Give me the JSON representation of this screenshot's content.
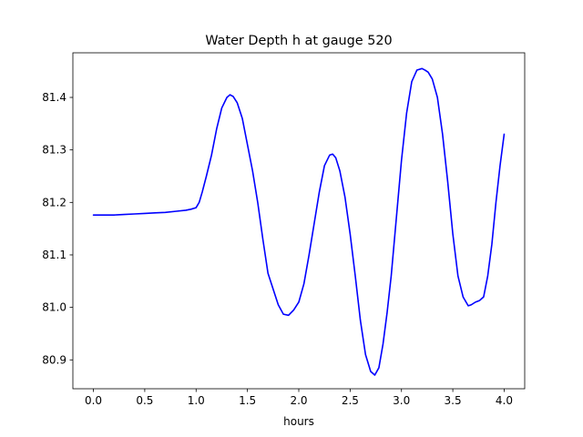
{
  "chart_data": {
    "type": "line",
    "title": "Water Depth h at gauge 520",
    "xlabel": "hours",
    "ylabel": "",
    "xlim": [
      -0.2,
      4.2
    ],
    "ylim": [
      80.845,
      81.485
    ],
    "grid": false,
    "xticks": [
      0.0,
      0.5,
      1.0,
      1.5,
      2.0,
      2.5,
      3.0,
      3.5,
      4.0
    ],
    "xtick_labels": [
      "0.0",
      "0.5",
      "1.0",
      "1.5",
      "2.0",
      "2.5",
      "3.0",
      "3.5",
      "4.0"
    ],
    "yticks": [
      80.9,
      81.0,
      81.1,
      81.2,
      81.3,
      81.4
    ],
    "ytick_labels": [
      "80.9",
      "81.0",
      "81.1",
      "81.2",
      "81.3",
      "81.4"
    ],
    "series": [
      {
        "color": "#0000ff",
        "x": [
          0.0,
          0.1,
          0.2,
          0.3,
          0.4,
          0.5,
          0.6,
          0.7,
          0.8,
          0.9,
          0.95,
          1.0,
          1.03,
          1.06,
          1.1,
          1.15,
          1.2,
          1.25,
          1.3,
          1.33,
          1.36,
          1.4,
          1.45,
          1.5,
          1.55,
          1.6,
          1.65,
          1.7,
          1.75,
          1.8,
          1.85,
          1.9,
          1.95,
          2.0,
          2.05,
          2.1,
          2.15,
          2.2,
          2.25,
          2.3,
          2.33,
          2.36,
          2.4,
          2.45,
          2.5,
          2.55,
          2.6,
          2.65,
          2.7,
          2.74,
          2.78,
          2.82,
          2.86,
          2.9,
          2.95,
          3.0,
          3.05,
          3.1,
          3.15,
          3.2,
          3.23,
          3.26,
          3.3,
          3.35,
          3.4,
          3.45,
          3.5,
          3.55,
          3.6,
          3.65,
          3.68,
          3.72,
          3.76,
          3.8,
          3.84,
          3.88,
          3.92,
          3.96,
          4.0
        ],
        "y": [
          81.176,
          81.176,
          81.176,
          81.177,
          81.178,
          81.179,
          81.18,
          81.181,
          81.183,
          81.185,
          81.187,
          81.19,
          81.2,
          81.22,
          81.25,
          81.29,
          81.34,
          81.38,
          81.4,
          81.405,
          81.402,
          81.39,
          81.36,
          81.31,
          81.26,
          81.2,
          81.13,
          81.065,
          81.035,
          81.005,
          80.987,
          80.985,
          80.995,
          81.01,
          81.045,
          81.1,
          81.16,
          81.22,
          81.27,
          81.29,
          81.292,
          81.285,
          81.26,
          81.21,
          81.14,
          81.06,
          80.975,
          80.91,
          80.878,
          80.871,
          80.885,
          80.93,
          80.99,
          81.06,
          81.17,
          81.28,
          81.37,
          81.43,
          81.452,
          81.455,
          81.452,
          81.448,
          81.435,
          81.4,
          81.33,
          81.24,
          81.14,
          81.06,
          81.02,
          81.003,
          81.005,
          81.01,
          81.013,
          81.02,
          81.06,
          81.12,
          81.2,
          81.27,
          81.33
        ]
      }
    ]
  }
}
